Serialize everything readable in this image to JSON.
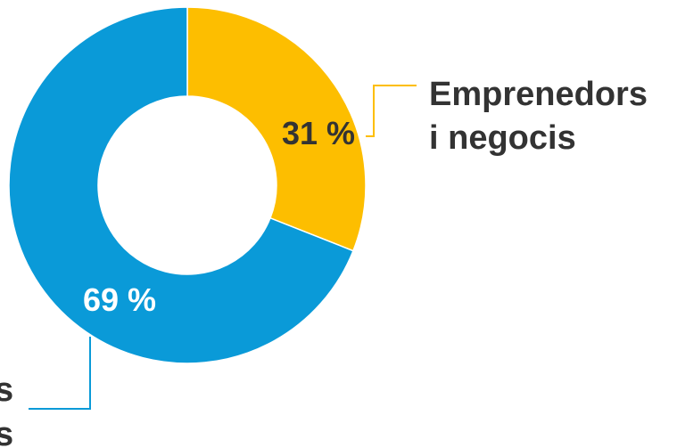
{
  "chart_data": {
    "type": "pie",
    "variant": "donut",
    "categories": [
      "Emprenedors i negocis",
      ""
    ],
    "values": [
      31,
      69
    ],
    "value_labels": [
      "31 %",
      "69 %"
    ],
    "label_lines": {
      "emprenedors": [
        "Emprenedors",
        "i negocis"
      ],
      "other": [
        "s",
        "s"
      ]
    },
    "colors": [
      "#FDBE00",
      "#0A9AD8"
    ],
    "value_label_colors": [
      "#333333",
      "#ffffff"
    ],
    "slice_separator_color": "#ffffff",
    "legend": "none"
  }
}
